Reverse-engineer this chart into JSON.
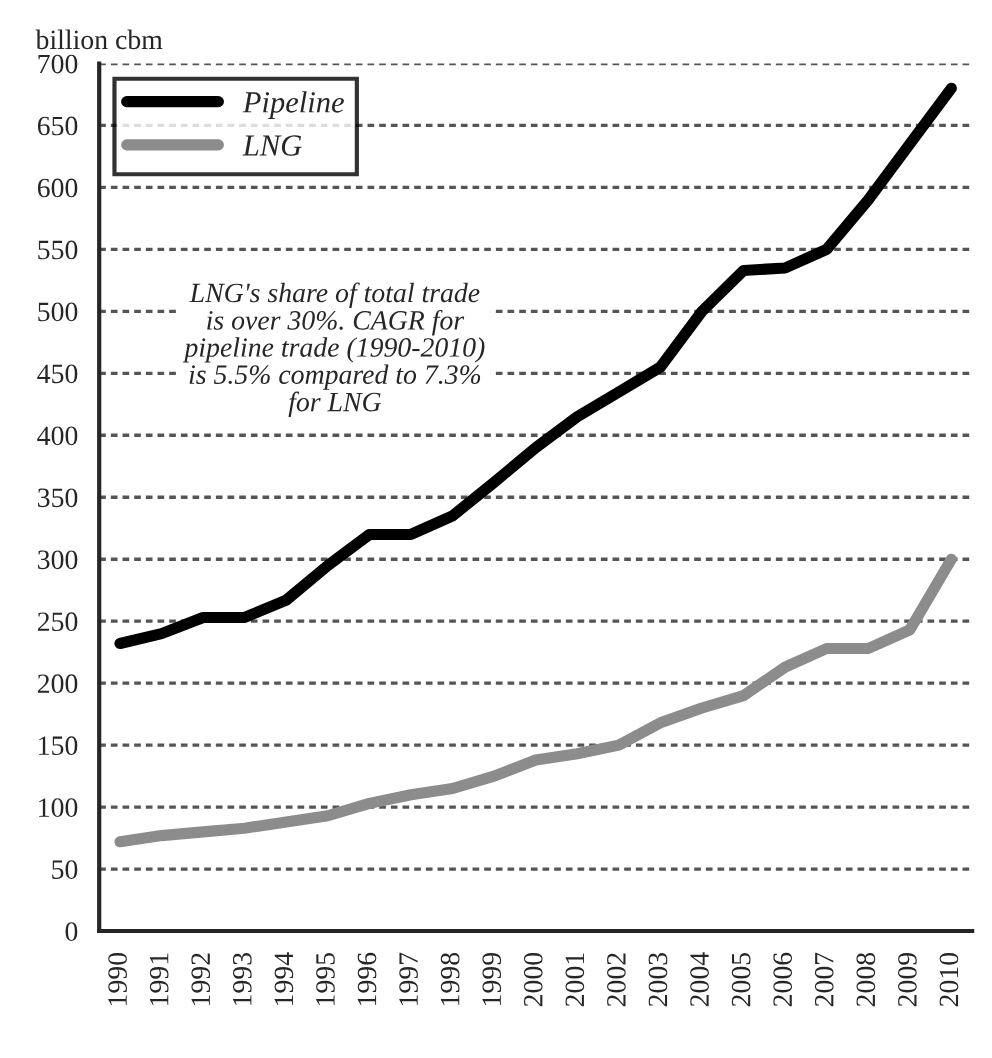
{
  "chart_data": {
    "type": "line",
    "ylabel": "billion cbm",
    "categories": [
      "1990",
      "1991",
      "1992",
      "1993",
      "1994",
      "1995",
      "1996",
      "1997",
      "1998",
      "1999",
      "2000",
      "2001",
      "2002",
      "2003",
      "2004",
      "2005",
      "2006",
      "2007",
      "2008",
      "2009",
      "2010"
    ],
    "series": [
      {
        "name": "Pipeline",
        "color": "#000000",
        "values": [
          232,
          240,
          253,
          253,
          267,
          295,
          320,
          320,
          335,
          362,
          390,
          415,
          435,
          455,
          500,
          533,
          535,
          550,
          590,
          635,
          680
        ]
      },
      {
        "name": "LNG",
        "color": "#8c8c8c",
        "values": [
          72,
          77,
          80,
          83,
          88,
          93,
          103,
          110,
          115,
          125,
          138,
          143,
          150,
          168,
          180,
          190,
          213,
          228,
          228,
          243,
          300
        ]
      }
    ],
    "ylim": [
      0,
      700
    ],
    "yticks": [
      0,
      50,
      100,
      150,
      200,
      250,
      300,
      350,
      400,
      450,
      500,
      550,
      600,
      650,
      700
    ],
    "grid": "y",
    "legend": "top left",
    "line_style": "solid",
    "marker": "none",
    "annotations": [
      "LNG's share of total trade\nis over 30%. CAGR for\npipeline trade (1990-2010)\nis 5.5% compared to 7.3%\nfor LNG"
    ]
  }
}
